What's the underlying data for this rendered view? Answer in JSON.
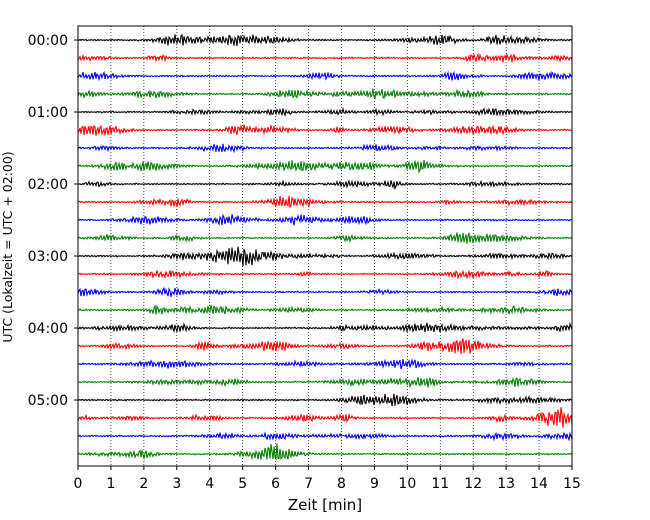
{
  "chart_data": {
    "type": "line",
    "title": "",
    "xlabel": "Zeit  [min]",
    "ylabel": "UTC (Lokalzeit = UTC + 02:00)",
    "xlim": [
      0,
      15
    ],
    "x_ticks": [
      "0",
      "1",
      "2",
      "3",
      "4",
      "5",
      "6",
      "7",
      "8",
      "9",
      "10",
      "11",
      "12",
      "13",
      "14",
      "15"
    ],
    "y_tick_labels": [
      "00:00",
      "01:00",
      "02:00",
      "03:00",
      "04:00",
      "05:00"
    ],
    "trace_interval_min": 15,
    "trace_count": 24,
    "trace_colors": [
      "#000000",
      "#ff0000",
      "#0000ff",
      "#008000"
    ],
    "grid": {
      "x": "dotted",
      "y": false
    },
    "legend": "none"
  }
}
